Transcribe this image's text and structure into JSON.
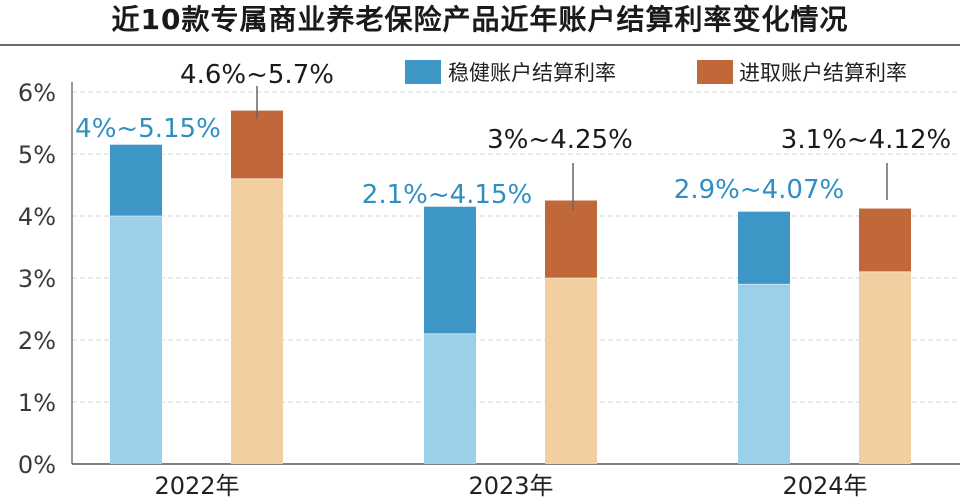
{
  "chart_data": {
    "type": "bar",
    "stacked": true,
    "title": "近10款专属商业养老保险产品近年账户结算利率变化情况",
    "categories": [
      "2022年",
      "2023年",
      "2024年"
    ],
    "ylim": [
      0,
      6
    ],
    "yticks": [
      "0%",
      "1%",
      "2%",
      "3%",
      "4%",
      "5%",
      "6%"
    ],
    "grid": true,
    "legend_position": "top-right",
    "series": [
      {
        "name": "稳健账户结算利率",
        "low": [
          4,
          2.1,
          2.9
        ],
        "high": [
          5.15,
          4.15,
          4.07
        ],
        "labels": [
          "4%~5.15%",
          "2.1%~4.15%",
          "2.9%~4.07%"
        ],
        "color_base": "#9ccfe8",
        "color_top": "#3d96c6",
        "label_color": "#2f8fc0"
      },
      {
        "name": "进取账户结算利率",
        "low": [
          4.6,
          3,
          3.1
        ],
        "high": [
          5.7,
          4.25,
          4.12
        ],
        "labels": [
          "4.6%~5.7%",
          "3%~4.25%",
          "3.1%~4.12%"
        ],
        "color_base": "#f2cfa1",
        "color_top": "#c0683a",
        "label_color": "#1a1a1a"
      }
    ]
  }
}
